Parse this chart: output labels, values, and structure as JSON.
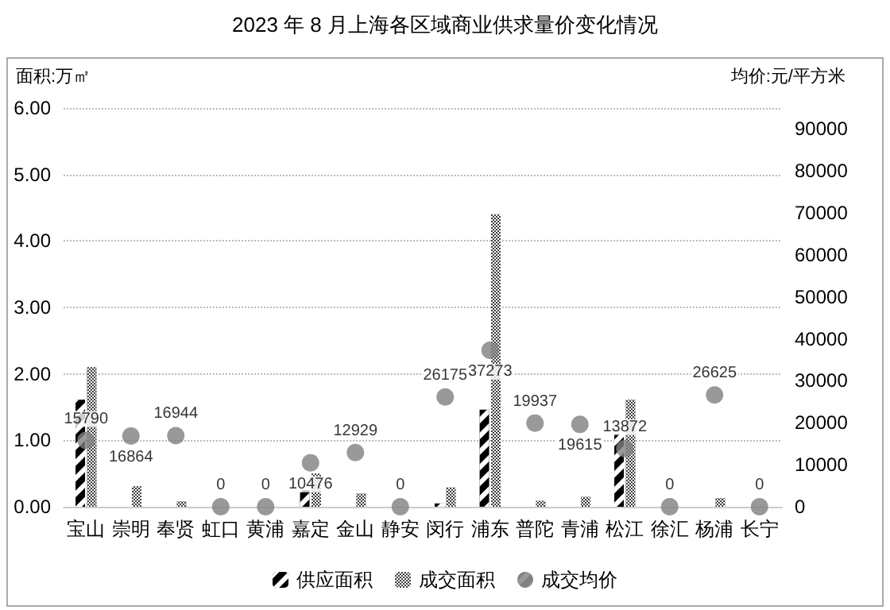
{
  "chart_data": {
    "type": "bar",
    "title": "2023 年 8 月上海各区域商业供求量价变化情况",
    "ylabel": "面积:万㎡",
    "y2label": "均价:元/平方米",
    "categories": [
      "宝山",
      "崇明",
      "奉贤",
      "虹口",
      "黄浦",
      "嘉定",
      "金山",
      "静安",
      "闵行",
      "浦东",
      "普陀",
      "青浦",
      "松江",
      "徐汇",
      "杨浦",
      "长宁"
    ],
    "series": [
      {
        "name": "供应面积",
        "color": "#000000",
        "values": [
          1.61,
          0,
          0,
          0,
          0,
          0.25,
          0,
          0,
          0.05,
          1.46,
          0,
          0,
          1.1,
          0,
          0,
          0
        ]
      },
      {
        "name": "成交面积",
        "color": "#404040",
        "values": [
          2.1,
          0.31,
          0.08,
          0,
          0,
          0.5,
          0.2,
          0,
          0.29,
          4.4,
          0.09,
          0.15,
          1.61,
          0,
          0.13,
          0
        ]
      },
      {
        "name": "成交均价",
        "type": "scatter",
        "axis": "y2",
        "color": "#808080",
        "marker": "circle",
        "data_labels": true,
        "values": [
          15790,
          16864,
          16944,
          0,
          0,
          10476,
          12929,
          0,
          26175,
          37273,
          19937,
          19615,
          13872,
          0,
          26625,
          0
        ]
      }
    ],
    "ylim": [
      0,
      6
    ],
    "yticks": [
      {
        "value": 0,
        "label": "0.00"
      },
      {
        "value": 1,
        "label": "1.00"
      },
      {
        "value": 2,
        "label": "2.00"
      },
      {
        "value": 3,
        "label": "3.00"
      },
      {
        "value": 4,
        "label": "4.00"
      },
      {
        "value": 5,
        "label": "5.00"
      },
      {
        "value": 6,
        "label": "6.00"
      }
    ],
    "y2lim": [
      0,
      95000
    ],
    "y2ticks": [
      0,
      10000,
      20000,
      30000,
      40000,
      50000,
      60000,
      70000,
      80000,
      90000
    ],
    "grid": "y",
    "legend": "bottom"
  }
}
